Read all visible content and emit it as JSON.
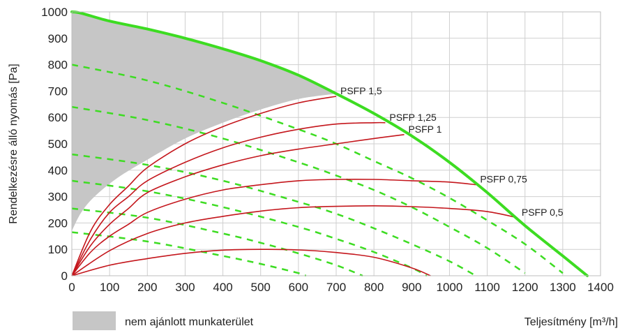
{
  "chart_data": {
    "type": "line",
    "xlabel": "Teljesítmény [m³/h]",
    "ylabel": "Rendelkezésre álló nyomás [Pa]",
    "xlim": [
      0,
      1400
    ],
    "ylim": [
      0,
      1000
    ],
    "xticks": [
      0,
      100,
      200,
      300,
      400,
      500,
      600,
      700,
      800,
      900,
      1000,
      1100,
      1200,
      1300,
      1400
    ],
    "yticks": [
      0,
      100,
      200,
      300,
      400,
      500,
      600,
      700,
      800,
      900,
      1000
    ],
    "xtick_labels": [
      "0",
      "100",
      "200",
      "300",
      "400",
      "500",
      "600",
      "700",
      "800",
      "900",
      "1000",
      "1100",
      "1200",
      "1300",
      "1400"
    ],
    "ytick_labels": [
      "0",
      "100",
      "200",
      "300",
      "400",
      "500",
      "600",
      "700",
      "800",
      "900",
      "1000"
    ],
    "grid": true,
    "colors": {
      "max_curve": "#3ddc22",
      "fan_dashed": "#3ddc22",
      "psfp": "#c4161c",
      "area": "#c6c6c6",
      "grid": "#cfcfcf"
    },
    "shaded_area": {
      "label": "nem ajánlott munkaterület",
      "boundary": [
        [
          0,
          170
        ],
        [
          25,
          240
        ],
        [
          60,
          300
        ],
        [
          120,
          370
        ],
        [
          200,
          440
        ],
        [
          300,
          520
        ],
        [
          400,
          580
        ],
        [
          500,
          630
        ],
        [
          600,
          670
        ],
        [
          700,
          690
        ]
      ]
    },
    "max_curve": {
      "points": [
        [
          0,
          1000
        ],
        [
          25,
          995
        ],
        [
          100,
          965
        ],
        [
          200,
          935
        ],
        [
          300,
          900
        ],
        [
          400,
          860
        ],
        [
          500,
          815
        ],
        [
          600,
          760
        ],
        [
          700,
          690
        ],
        [
          800,
          615
        ],
        [
          900,
          530
        ],
        [
          1000,
          430
        ],
        [
          1100,
          315
        ],
        [
          1200,
          190
        ],
        [
          1300,
          75
        ],
        [
          1365,
          0
        ]
      ]
    },
    "dashed_fan_curves": [
      [
        [
          0,
          800
        ],
        [
          200,
          740
        ],
        [
          400,
          655
        ],
        [
          600,
          555
        ],
        [
          700,
          500
        ],
        [
          800,
          435
        ],
        [
          900,
          370
        ],
        [
          1000,
          295
        ],
        [
          1100,
          210
        ],
        [
          1200,
          120
        ],
        [
          1300,
          10
        ]
      ],
      [
        [
          0,
          640
        ],
        [
          200,
          590
        ],
        [
          400,
          520
        ],
        [
          600,
          430
        ],
        [
          700,
          380
        ],
        [
          800,
          325
        ],
        [
          900,
          260
        ],
        [
          1000,
          185
        ],
        [
          1100,
          105
        ],
        [
          1200,
          10
        ]
      ],
      [
        [
          0,
          460
        ],
        [
          200,
          420
        ],
        [
          400,
          360
        ],
        [
          600,
          280
        ],
        [
          700,
          235
        ],
        [
          800,
          180
        ],
        [
          900,
          120
        ],
        [
          1000,
          55
        ],
        [
          1070,
          0
        ]
      ],
      [
        [
          0,
          360
        ],
        [
          200,
          320
        ],
        [
          400,
          260
        ],
        [
          600,
          185
        ],
        [
          700,
          140
        ],
        [
          800,
          90
        ],
        [
          900,
          30
        ],
        [
          940,
          0
        ]
      ],
      [
        [
          0,
          255
        ],
        [
          200,
          220
        ],
        [
          400,
          160
        ],
        [
          500,
          125
        ],
        [
          600,
          85
        ],
        [
          700,
          40
        ],
        [
          770,
          0
        ]
      ],
      [
        [
          0,
          165
        ],
        [
          200,
          130
        ],
        [
          400,
          75
        ],
        [
          500,
          45
        ],
        [
          600,
          10
        ],
        [
          620,
          0
        ]
      ]
    ],
    "psfp_series": [
      {
        "name": "PSFP 1,5",
        "points": [
          [
            0,
            0
          ],
          [
            50,
            170
          ],
          [
            100,
            270
          ],
          [
            150,
            340
          ],
          [
            200,
            410
          ],
          [
            300,
            500
          ],
          [
            400,
            565
          ],
          [
            500,
            615
          ],
          [
            600,
            655
          ],
          [
            700,
            680
          ]
        ]
      },
      {
        "name": "PSFP 1,25",
        "points": [
          [
            0,
            0
          ],
          [
            50,
            140
          ],
          [
            100,
            240
          ],
          [
            150,
            300
          ],
          [
            200,
            360
          ],
          [
            300,
            430
          ],
          [
            400,
            485
          ],
          [
            500,
            525
          ],
          [
            600,
            555
          ],
          [
            700,
            575
          ],
          [
            800,
            580
          ],
          [
            830,
            580
          ]
        ]
      },
      {
        "name": "PSFP 1",
        "points": [
          [
            0,
            0
          ],
          [
            50,
            115
          ],
          [
            100,
            195
          ],
          [
            150,
            255
          ],
          [
            200,
            315
          ],
          [
            300,
            375
          ],
          [
            400,
            420
          ],
          [
            500,
            455
          ],
          [
            600,
            480
          ],
          [
            700,
            500
          ],
          [
            800,
            520
          ],
          [
            880,
            535
          ]
        ]
      },
      {
        "name": "PSFP 0,75",
        "points": [
          [
            0,
            0
          ],
          [
            50,
            90
          ],
          [
            100,
            150
          ],
          [
            150,
            195
          ],
          [
            200,
            240
          ],
          [
            300,
            290
          ],
          [
            400,
            325
          ],
          [
            500,
            345
          ],
          [
            600,
            360
          ],
          [
            700,
            365
          ],
          [
            800,
            365
          ],
          [
            900,
            360
          ],
          [
            1000,
            355
          ],
          [
            1070,
            345
          ]
        ]
      },
      {
        "name": "PSFP 0,5",
        "points": [
          [
            0,
            0
          ],
          [
            100,
            95
          ],
          [
            200,
            160
          ],
          [
            300,
            200
          ],
          [
            400,
            225
          ],
          [
            500,
            245
          ],
          [
            600,
            258
          ],
          [
            700,
            263
          ],
          [
            800,
            265
          ],
          [
            900,
            262
          ],
          [
            1000,
            255
          ],
          [
            1100,
            243
          ],
          [
            1180,
            220
          ]
        ]
      },
      {
        "name": "",
        "points": [
          [
            0,
            0
          ],
          [
            100,
            40
          ],
          [
            200,
            65
          ],
          [
            300,
            85
          ],
          [
            400,
            97
          ],
          [
            500,
            100
          ],
          [
            600,
            98
          ],
          [
            700,
            88
          ],
          [
            800,
            70
          ],
          [
            900,
            30
          ],
          [
            950,
            0
          ]
        ]
      }
    ]
  },
  "legend": {
    "area_label": "nem ajánlott munkaterület",
    "axis_label": "Teljesítmény [m³/h]"
  }
}
